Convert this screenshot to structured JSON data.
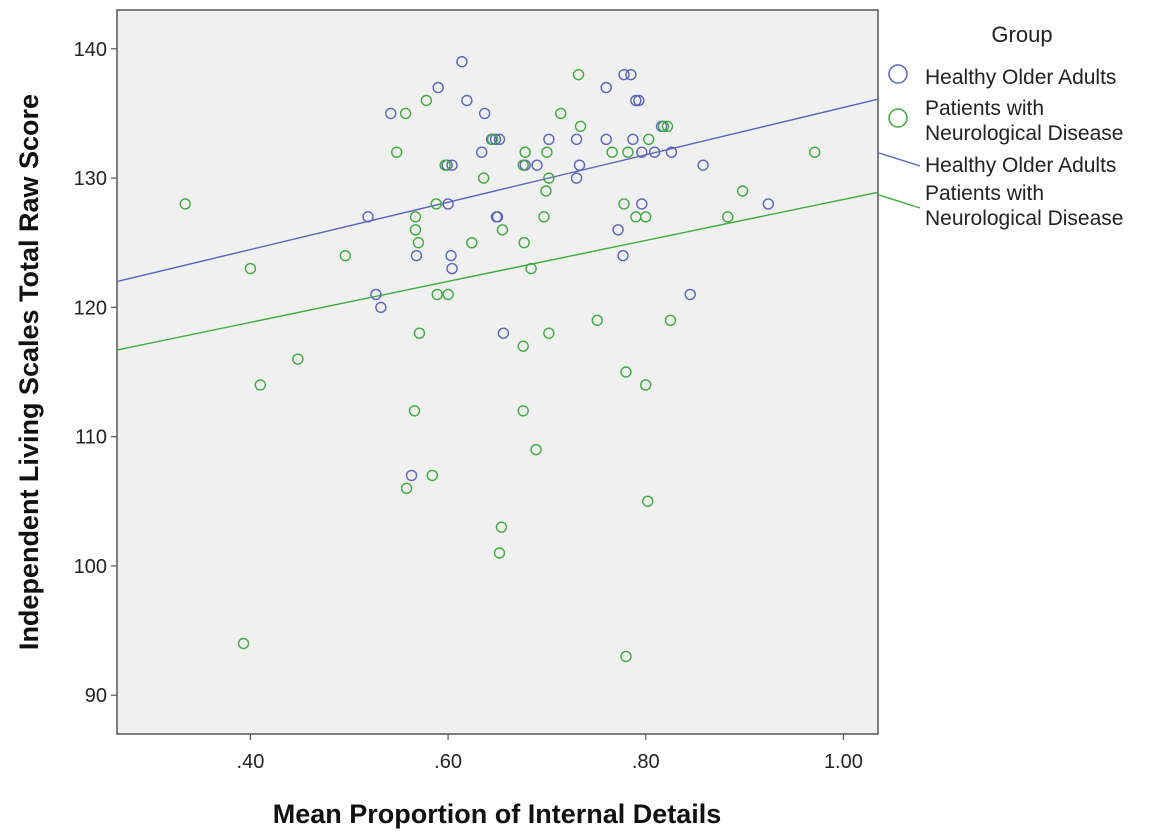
{
  "chart_data": {
    "type": "scatter",
    "xlabel": "Mean Proportion of Internal Details",
    "ylabel": "Independent Living Scales Total Raw Score",
    "xlim": [
      0.265,
      1.035
    ],
    "ylim": [
      87,
      143
    ],
    "x_ticks": [
      0.4,
      0.6,
      0.8,
      1.0
    ],
    "x_tick_labels": [
      ".40",
      ".60",
      ".80",
      "1.00"
    ],
    "y_ticks": [
      90,
      100,
      110,
      120,
      130,
      140
    ],
    "y_tick_labels": [
      "90",
      "100",
      "110",
      "120",
      "130",
      "140"
    ],
    "grid": false,
    "legend": {
      "title": "Group",
      "placement": "right",
      "entries": [
        {
          "label_lines": [
            "Healthy Older Adults"
          ],
          "kind": "marker",
          "series": 0
        },
        {
          "label_lines": [
            "Patients with",
            "Neurological Disease"
          ],
          "kind": "marker",
          "series": 1
        },
        {
          "label_lines": [
            "Healthy Older Adults"
          ],
          "kind": "line",
          "series": 0
        },
        {
          "label_lines": [
            "Patients with",
            "Neurological Disease"
          ],
          "kind": "line",
          "series": 1
        }
      ]
    },
    "series": [
      {
        "name": "Healthy Older Adults",
        "color": "#5a64b8",
        "fit_line": [
          [
            0.265,
            122.0
          ],
          [
            1.035,
            136.1
          ]
        ],
        "points": [
          [
            0.542,
            135
          ],
          [
            0.59,
            137
          ],
          [
            0.614,
            139
          ],
          [
            0.619,
            136
          ],
          [
            0.637,
            135
          ],
          [
            0.634,
            132
          ],
          [
            0.644,
            133
          ],
          [
            0.648,
            133
          ],
          [
            0.652,
            133
          ],
          [
            0.599,
            131
          ],
          [
            0.604,
            131
          ],
          [
            0.519,
            127
          ],
          [
            0.6,
            128
          ],
          [
            0.649,
            127
          ],
          [
            0.65,
            127
          ],
          [
            0.568,
            124
          ],
          [
            0.603,
            124
          ],
          [
            0.604,
            123
          ],
          [
            0.527,
            121
          ],
          [
            0.532,
            120
          ],
          [
            0.656,
            118
          ],
          [
            0.563,
            107
          ],
          [
            0.678,
            131
          ],
          [
            0.69,
            131
          ],
          [
            0.702,
            133
          ],
          [
            0.73,
            133
          ],
          [
            0.733,
            131
          ],
          [
            0.73,
            130
          ],
          [
            0.76,
            137
          ],
          [
            0.76,
            133
          ],
          [
            0.778,
            138
          ],
          [
            0.785,
            138
          ],
          [
            0.79,
            136
          ],
          [
            0.793,
            136
          ],
          [
            0.787,
            133
          ],
          [
            0.796,
            132
          ],
          [
            0.809,
            132
          ],
          [
            0.816,
            134
          ],
          [
            0.826,
            132
          ],
          [
            0.858,
            131
          ],
          [
            0.796,
            128
          ],
          [
            0.772,
            126
          ],
          [
            0.777,
            124
          ],
          [
            0.845,
            121
          ],
          [
            0.924,
            128
          ]
        ]
      },
      {
        "name": "Patients with Neurological Disease",
        "color": "#3faa3f",
        "fit_line": [
          [
            0.265,
            116.7
          ],
          [
            1.035,
            128.9
          ]
        ],
        "points": [
          [
            0.334,
            128
          ],
          [
            0.4,
            123
          ],
          [
            0.41,
            114
          ],
          [
            0.448,
            116
          ],
          [
            0.496,
            124
          ],
          [
            0.393,
            94
          ],
          [
            0.548,
            132
          ],
          [
            0.557,
            135
          ],
          [
            0.578,
            136
          ],
          [
            0.567,
            127
          ],
          [
            0.567,
            126
          ],
          [
            0.57,
            125
          ],
          [
            0.571,
            118
          ],
          [
            0.566,
            112
          ],
          [
            0.558,
            106
          ],
          [
            0.584,
            107
          ],
          [
            0.588,
            128
          ],
          [
            0.589,
            121
          ],
          [
            0.6,
            121
          ],
          [
            0.597,
            131
          ],
          [
            0.624,
            125
          ],
          [
            0.636,
            130
          ],
          [
            0.645,
            133
          ],
          [
            0.655,
            126
          ],
          [
            0.654,
            103
          ],
          [
            0.652,
            101
          ],
          [
            0.676,
            131
          ],
          [
            0.678,
            132
          ],
          [
            0.677,
            125
          ],
          [
            0.676,
            117
          ],
          [
            0.676,
            112
          ],
          [
            0.684,
            123
          ],
          [
            0.689,
            109
          ],
          [
            0.697,
            127
          ],
          [
            0.699,
            129
          ],
          [
            0.702,
            130
          ],
          [
            0.7,
            132
          ],
          [
            0.702,
            118
          ],
          [
            0.714,
            135
          ],
          [
            0.732,
            138
          ],
          [
            0.734,
            134
          ],
          [
            0.751,
            119
          ],
          [
            0.766,
            132
          ],
          [
            0.778,
            128
          ],
          [
            0.782,
            132
          ],
          [
            0.78,
            115
          ],
          [
            0.78,
            93
          ],
          [
            0.79,
            127
          ],
          [
            0.8,
            127
          ],
          [
            0.8,
            114
          ],
          [
            0.802,
            105
          ],
          [
            0.803,
            133
          ],
          [
            0.818,
            134
          ],
          [
            0.822,
            134
          ],
          [
            0.825,
            119
          ],
          [
            0.883,
            127
          ],
          [
            0.898,
            129
          ],
          [
            0.971,
            132
          ]
        ]
      }
    ]
  }
}
